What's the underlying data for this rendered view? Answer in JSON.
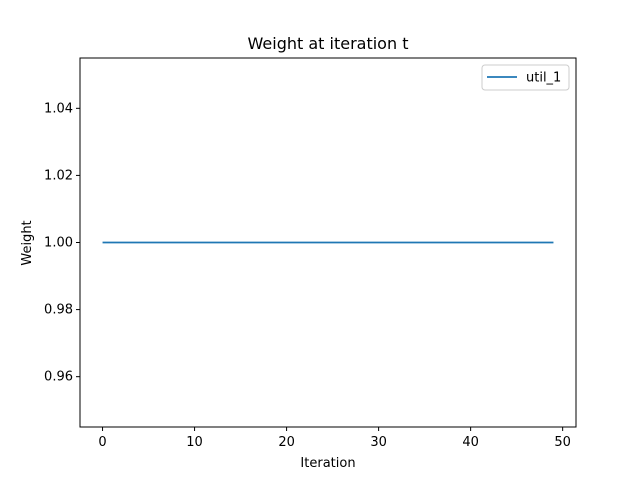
{
  "chart_data": {
    "type": "line",
    "title": "Weight at iteration t",
    "xlabel": "Iteration",
    "ylabel": "Weight",
    "xlim": [
      -2.45,
      51.45
    ],
    "ylim": [
      0.945,
      1.055
    ],
    "xticks": [
      0,
      10,
      20,
      30,
      40,
      50
    ],
    "xtick_labels": [
      "0",
      "10",
      "20",
      "30",
      "40",
      "50"
    ],
    "yticks": [
      0.96,
      0.98,
      1.0,
      1.02,
      1.04
    ],
    "ytick_labels": [
      "0.96",
      "0.98",
      "1.00",
      "1.02",
      "1.04"
    ],
    "grid": false,
    "legend_position": "top-right",
    "series": [
      {
        "name": "util_1",
        "color": "#1f77b4",
        "x": [
          0,
          49
        ],
        "y": [
          1.0,
          1.0
        ]
      }
    ]
  }
}
